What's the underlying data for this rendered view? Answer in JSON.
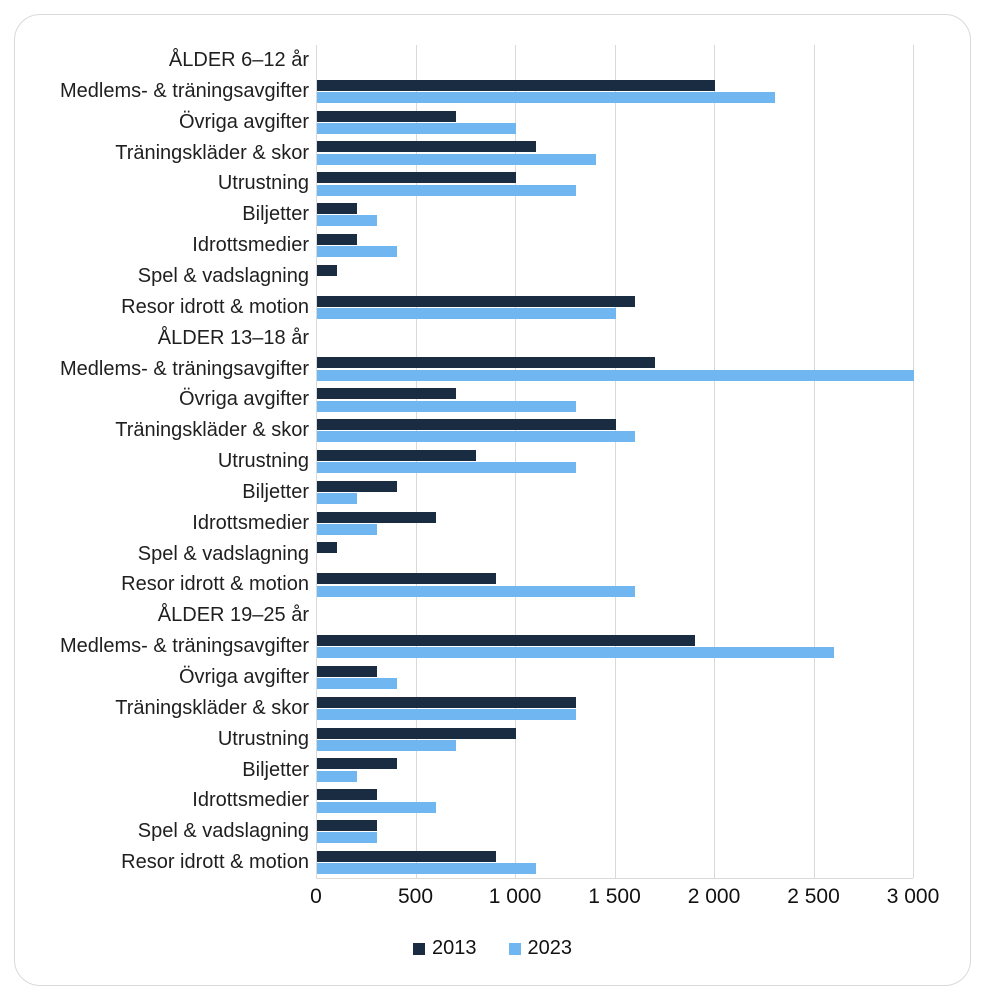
{
  "chart_data": {
    "type": "bar",
    "orientation": "horizontal",
    "series": [
      "2013",
      "2023"
    ],
    "colors": {
      "2013": "#1a2c42",
      "2023": "#70b6f0"
    },
    "x_axis": {
      "min": 0,
      "max": 3000,
      "tick_step": 500,
      "tick_labels": [
        "0",
        "500",
        "1 000",
        "1 500",
        "2 000",
        "2 500",
        "3 000"
      ],
      "grid": true
    },
    "legend_position": "bottom-center",
    "rows": [
      {
        "type": "header",
        "label": "ÅLDER 6–12 år"
      },
      {
        "type": "category",
        "label": "Medlems- & träningsavgifter",
        "values": [
          2000,
          2300
        ]
      },
      {
        "type": "category",
        "label": "Övriga avgifter",
        "values": [
          700,
          1000
        ]
      },
      {
        "type": "category",
        "label": "Träningskläder & skor",
        "values": [
          1100,
          1400
        ]
      },
      {
        "type": "category",
        "label": "Utrustning",
        "values": [
          1000,
          1300
        ]
      },
      {
        "type": "category",
        "label": "Biljetter",
        "values": [
          200,
          300
        ]
      },
      {
        "type": "category",
        "label": "Idrottsmedier",
        "values": [
          200,
          400
        ]
      },
      {
        "type": "category",
        "label": "Spel & vadslagning",
        "values": [
          100,
          null
        ]
      },
      {
        "type": "category",
        "label": "Resor idrott & motion",
        "values": [
          1600,
          1500
        ]
      },
      {
        "type": "header",
        "label": "ÅLDER 13–18 år"
      },
      {
        "type": "category",
        "label": "Medlems- & träningsavgifter",
        "values": [
          1700,
          3000
        ]
      },
      {
        "type": "category",
        "label": "Övriga avgifter",
        "values": [
          700,
          1300
        ]
      },
      {
        "type": "category",
        "label": "Träningskläder & skor",
        "values": [
          1500,
          1600
        ]
      },
      {
        "type": "category",
        "label": "Utrustning",
        "values": [
          800,
          1300
        ]
      },
      {
        "type": "category",
        "label": "Biljetter",
        "values": [
          400,
          200
        ]
      },
      {
        "type": "category",
        "label": "Idrottsmedier",
        "values": [
          600,
          300
        ]
      },
      {
        "type": "category",
        "label": "Spel & vadslagning",
        "values": [
          100,
          null
        ]
      },
      {
        "type": "category",
        "label": "Resor idrott & motion",
        "values": [
          900,
          1600
        ]
      },
      {
        "type": "header",
        "label": "ÅLDER 19–25 år"
      },
      {
        "type": "category",
        "label": "Medlems- & träningsavgifter",
        "values": [
          1900,
          2600
        ]
      },
      {
        "type": "category",
        "label": "Övriga avgifter",
        "values": [
          300,
          400
        ]
      },
      {
        "type": "category",
        "label": "Träningskläder & skor",
        "values": [
          1300,
          1300
        ]
      },
      {
        "type": "category",
        "label": "Utrustning",
        "values": [
          1000,
          700
        ]
      },
      {
        "type": "category",
        "label": "Biljetter",
        "values": [
          400,
          200
        ]
      },
      {
        "type": "category",
        "label": "Idrottsmedier",
        "values": [
          300,
          600
        ]
      },
      {
        "type": "category",
        "label": "Spel & vadslagning",
        "values": [
          300,
          300
        ]
      },
      {
        "type": "category",
        "label": "Resor idrott & motion",
        "values": [
          900,
          1100
        ]
      }
    ]
  }
}
